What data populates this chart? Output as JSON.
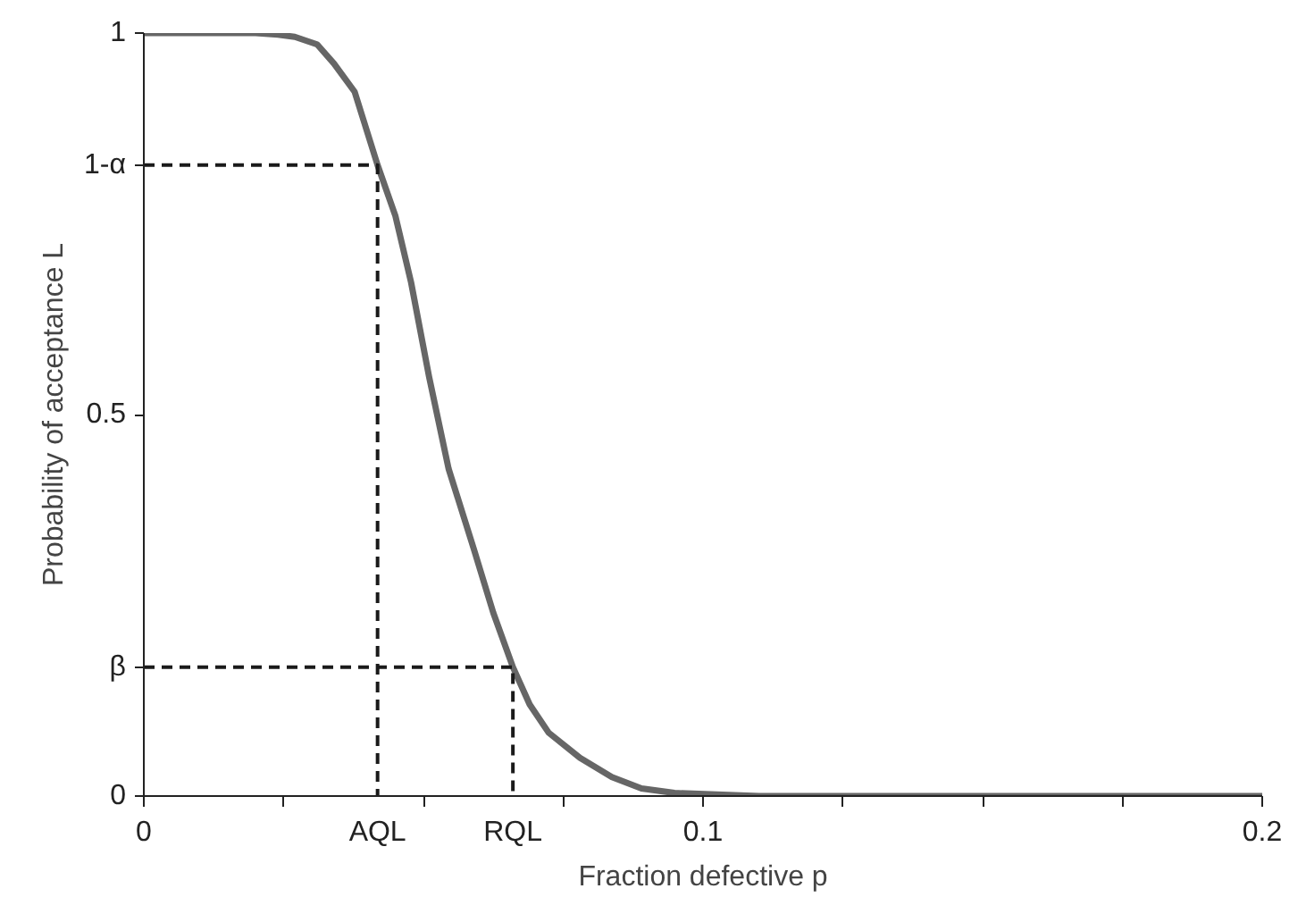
{
  "chart_data": {
    "type": "line",
    "xlabel": "Fraction defective p",
    "ylabel": "Probability of acceptance L",
    "xlim": [
      0,
      0.2
    ],
    "ylim": [
      0,
      1
    ],
    "xticks": [
      0,
      {
        "value": 0.025,
        "label": null
      },
      {
        "value": 0.0418,
        "label": "AQL"
      },
      {
        "value": 0.066,
        "label": "RQL"
      },
      {
        "value": 0.05,
        "label": null
      },
      {
        "value": 0.075,
        "label": null
      },
      0.1,
      {
        "value": 0.125,
        "label": null
      },
      {
        "value": 0.15,
        "label": null
      },
      {
        "value": 0.175,
        "label": null
      },
      0.2
    ],
    "yticks": [
      0,
      {
        "value": 0.169,
        "label": "β"
      },
      0.5,
      {
        "value": 0.827,
        "label": "1-α"
      },
      1
    ],
    "grid": false,
    "marker": "none",
    "series": [
      {
        "color": "#666666",
        "line_style": "solid",
        "x": [
          0,
          0.01,
          0.02,
          0.024,
          0.027,
          0.031,
          0.034,
          0.0377,
          0.0418,
          0.045,
          0.0478,
          0.051,
          0.0545,
          0.059,
          0.0625,
          0.066,
          0.069,
          0.0724,
          0.078,
          0.0837,
          0.089,
          0.0949,
          0.11,
          0.15,
          0.2
        ],
        "values": [
          1,
          1,
          1,
          0.998,
          0.995,
          0.985,
          0.96,
          0.923,
          0.827,
          0.76,
          0.673,
          0.55,
          0.429,
          0.324,
          0.24,
          0.169,
          0.12,
          0.083,
          0.05,
          0.025,
          0.01,
          0.004,
          0,
          0,
          0
        ]
      },
      {
        "color": "#1a1a1a",
        "line_style": "dashed",
        "x": [
          0,
          0.0418,
          0.0418
        ],
        "values": [
          0.827,
          0.827,
          0
        ]
      },
      {
        "color": "#1a1a1a",
        "line_style": "dashed",
        "x": [
          0,
          0.066,
          0.066
        ],
        "values": [
          0.169,
          0.169,
          0
        ]
      }
    ]
  }
}
